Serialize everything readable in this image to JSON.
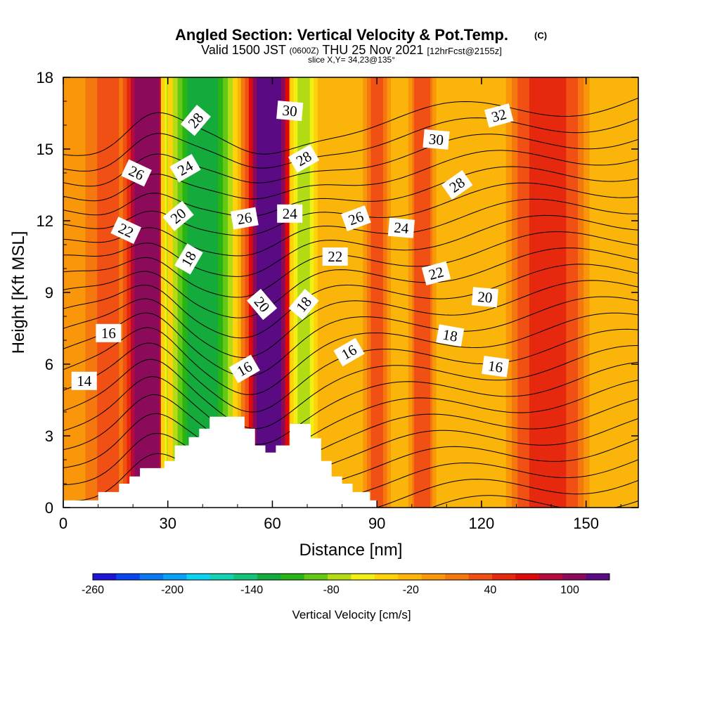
{
  "title": {
    "main": "Angled Section: Vertical Velocity & Pot.Temp.",
    "main_tag": "(C)",
    "valid_prefix": "Valid 1500 JST",
    "valid_utc": "(0600Z)",
    "valid_date": "THU 25 Nov 2021",
    "forecast_tag": "[12hrFcst@2155z]",
    "slice": "slice X,Y= 34,23@135°"
  },
  "chart_data": {
    "type": "contour",
    "xlabel": "Distance [nm]",
    "ylabel": "Height [Kft MSL]",
    "xlim": [
      0,
      165
    ],
    "ylim": [
      0,
      18
    ],
    "x_ticks": [
      "0",
      "30",
      "60",
      "90",
      "120",
      "150"
    ],
    "y_ticks": [
      "0",
      "3",
      "6",
      "9",
      "12",
      "15",
      "18"
    ],
    "colorbar": {
      "label": "Vertical Velocity [cm/s]",
      "range": [
        -260,
        130
      ],
      "tick_labels": [
        "-260",
        "-200",
        "-140",
        "-80",
        "-20",
        "40",
        "100"
      ],
      "colors": [
        "#1e14d8",
        "#0a46f0",
        "#0a78f0",
        "#0aa0f5",
        "#0ad2f0",
        "#14d2b4",
        "#14c378",
        "#14aa3c",
        "#28b414",
        "#64c814",
        "#b4dc14",
        "#f0f014",
        "#ffd20a",
        "#ffb40a",
        "#fa960a",
        "#f5780f",
        "#f05014",
        "#e6280f",
        "#dc0a0a",
        "#b40a3c",
        "#8c0a5a",
        "#5a0a82"
      ]
    },
    "shading_bands": [
      {
        "x": 4,
        "w": 4,
        "value": 5
      },
      {
        "x": 15,
        "w": 6,
        "value": 30
      },
      {
        "x": 24,
        "w": 4,
        "value": 110
      },
      {
        "x": 32,
        "w": 2,
        "value": -80
      },
      {
        "x": 40,
        "w": 5,
        "value": -135
      },
      {
        "x": 59,
        "w": 4,
        "value": 125
      },
      {
        "x": 69,
        "w": 2,
        "value": -70
      },
      {
        "x": 90,
        "w": 2,
        "value": 25
      },
      {
        "x": 103,
        "w": 2,
        "value": 35
      },
      {
        "x": 139,
        "w": 6,
        "value": 55
      }
    ],
    "terrain": [
      [
        0,
        0.3
      ],
      [
        10,
        0.3
      ],
      [
        10,
        0.65
      ],
      [
        16,
        0.65
      ],
      [
        16,
        1.0
      ],
      [
        19,
        1.0
      ],
      [
        19,
        1.3
      ],
      [
        22,
        1.3
      ],
      [
        22,
        1.65
      ],
      [
        29,
        1.65
      ],
      [
        29,
        1.95
      ],
      [
        32,
        1.95
      ],
      [
        32,
        2.6
      ],
      [
        36,
        2.6
      ],
      [
        36,
        2.95
      ],
      [
        39,
        2.95
      ],
      [
        39,
        3.3
      ],
      [
        42,
        3.3
      ],
      [
        42,
        3.8
      ],
      [
        52,
        3.8
      ],
      [
        52,
        3.3
      ],
      [
        55,
        3.3
      ],
      [
        55,
        2.6
      ],
      [
        58,
        2.6
      ],
      [
        58,
        2.3
      ],
      [
        61,
        2.3
      ],
      [
        61,
        2.6
      ],
      [
        65,
        2.6
      ],
      [
        65,
        3.5
      ],
      [
        71,
        3.5
      ],
      [
        71,
        2.9
      ],
      [
        74,
        2.9
      ],
      [
        74,
        1.95
      ],
      [
        77,
        1.95
      ],
      [
        77,
        1.3
      ],
      [
        80,
        1.3
      ],
      [
        80,
        1.0
      ],
      [
        83,
        1.0
      ],
      [
        83,
        0.65
      ],
      [
        88,
        0.65
      ],
      [
        88,
        0.3
      ],
      [
        90,
        0.3
      ],
      [
        90,
        0
      ],
      [
        0,
        0
      ]
    ],
    "isentropes": [
      {
        "level": 14,
        "labels": [
          {
            "text": "14",
            "x": 6,
            "y": 5.3,
            "rot": 0
          }
        ]
      },
      {
        "level": 16,
        "labels": [
          {
            "text": "16",
            "x": 13,
            "y": 7.3,
            "rot": 0
          },
          {
            "text": "16",
            "x": 52,
            "y": 5.8,
            "rot": 30
          },
          {
            "text": "16",
            "x": 82,
            "y": 6.5,
            "rot": 30
          },
          {
            "text": "16",
            "x": 124,
            "y": 5.9,
            "rot": -8
          }
        ]
      },
      {
        "level": 18,
        "labels": [
          {
            "text": "18",
            "x": 36,
            "y": 10.4,
            "rot": 60
          },
          {
            "text": "18",
            "x": 69,
            "y": 8.5,
            "rot": 50
          },
          {
            "text": "18",
            "x": 111,
            "y": 7.2,
            "rot": -10
          }
        ]
      },
      {
        "level": 20,
        "labels": [
          {
            "text": "20",
            "x": 33,
            "y": 12.2,
            "rot": 40
          },
          {
            "text": "20",
            "x": 57,
            "y": 8.5,
            "rot": -50
          },
          {
            "text": "20",
            "x": 121,
            "y": 8.8,
            "rot": -5
          }
        ]
      },
      {
        "level": 22,
        "labels": [
          {
            "text": "22",
            "x": 18,
            "y": 11.6,
            "rot": -25
          },
          {
            "text": "22",
            "x": 78,
            "y": 10.5,
            "rot": 0
          },
          {
            "text": "22",
            "x": 107,
            "y": 9.8,
            "rot": 15
          }
        ]
      },
      {
        "level": 24,
        "labels": [
          {
            "text": "24",
            "x": 35,
            "y": 14.2,
            "rot": 30
          },
          {
            "text": "24",
            "x": 65,
            "y": 12.3,
            "rot": 0
          },
          {
            "text": "24",
            "x": 97,
            "y": 11.7,
            "rot": -5
          }
        ]
      },
      {
        "level": 26,
        "labels": [
          {
            "text": "26",
            "x": 21,
            "y": 14.0,
            "rot": -25
          },
          {
            "text": "26",
            "x": 52,
            "y": 12.1,
            "rot": 10
          },
          {
            "text": "26",
            "x": 84,
            "y": 12.1,
            "rot": 20
          }
        ]
      },
      {
        "level": 28,
        "labels": [
          {
            "text": "28",
            "x": 38,
            "y": 16.2,
            "rot": 50
          },
          {
            "text": "28",
            "x": 69,
            "y": 14.6,
            "rot": 30
          },
          {
            "text": "28",
            "x": 113,
            "y": 13.5,
            "rot": 35
          }
        ]
      },
      {
        "level": 30,
        "labels": [
          {
            "text": "30",
            "x": 65,
            "y": 16.6,
            "rot": -5
          },
          {
            "text": "30",
            "x": 107,
            "y": 15.4,
            "rot": -5
          }
        ]
      },
      {
        "level": 32,
        "labels": [
          {
            "text": "32",
            "x": 125,
            "y": 16.4,
            "rot": 15
          }
        ]
      }
    ]
  }
}
